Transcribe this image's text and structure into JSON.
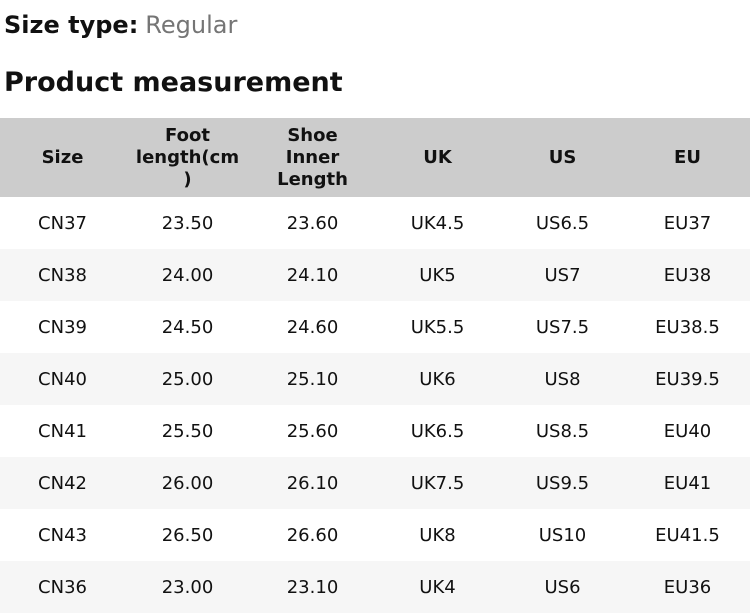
{
  "page": {
    "size_type_label": "Size type:",
    "size_type_value": "Regular",
    "section_title": "Product measurement"
  },
  "colors": {
    "header_bg": "#cccccc",
    "row_bg": "#ffffff",
    "row_alt_bg": "#f6f6f6",
    "text": "#111111",
    "muted_text": "#757575"
  },
  "table": {
    "columns": [
      "Size",
      "Foot\nlength(cm\n)",
      "Shoe\nInner\nLength",
      "UK",
      "US",
      "EU"
    ],
    "rows": [
      [
        "CN37",
        "23.50",
        "23.60",
        "UK4.5",
        "US6.5",
        "EU37"
      ],
      [
        "CN38",
        "24.00",
        "24.10",
        "UK5",
        "US7",
        "EU38"
      ],
      [
        "CN39",
        "24.50",
        "24.60",
        "UK5.5",
        "US7.5",
        "EU38.5"
      ],
      [
        "CN40",
        "25.00",
        "25.10",
        "UK6",
        "US8",
        "EU39.5"
      ],
      [
        "CN41",
        "25.50",
        "25.60",
        "UK6.5",
        "US8.5",
        "EU40"
      ],
      [
        "CN42",
        "26.00",
        "26.10",
        "UK7.5",
        "US9.5",
        "EU41"
      ],
      [
        "CN43",
        "26.50",
        "26.60",
        "UK8",
        "US10",
        "EU41.5"
      ],
      [
        "CN36",
        "23.00",
        "23.10",
        "UK4",
        "US6",
        "EU36"
      ]
    ]
  }
}
